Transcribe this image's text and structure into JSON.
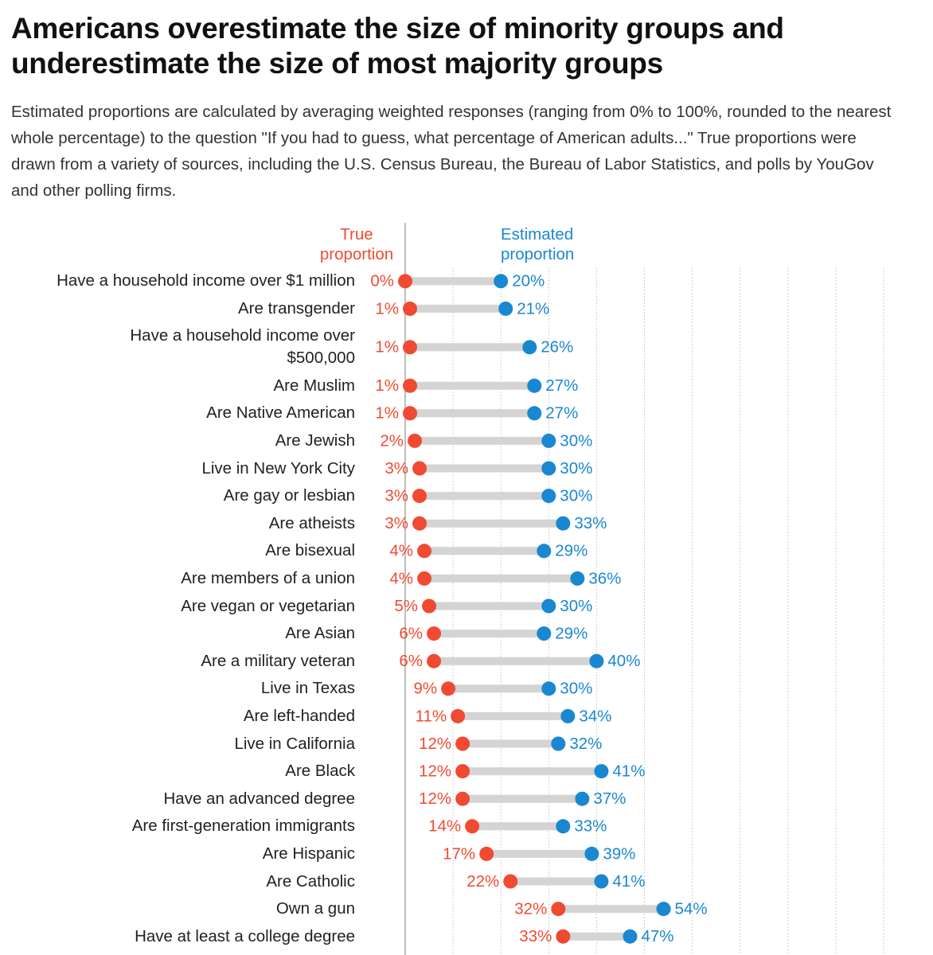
{
  "chart_data": {
    "type": "dumbbell",
    "title": "Americans overestimate the size of minority groups and underestimate the size of most majority groups",
    "subtitle": "Estimated proportions are calculated by averaging weighted responses (ranging from 0% to 100%, rounded to the nearest whole percentage) to the question \"If you had to guess, what percentage of American adults...\" True proportions were drawn from a variety of sources, including the U.S. Census Bureau, the Bureau of Labor Statistics, and polls by YouGov and other polling firms.",
    "categories": [
      "Have a household income over $1 million",
      "Are transgender",
      "Have a household income over\n$500,000",
      "Are Muslim",
      "Are Native American",
      "Are Jewish",
      "Live in New York City",
      "Are gay or lesbian",
      "Are atheists",
      "Are bisexual",
      "Are members of a union",
      "Are vegan or vegetarian",
      "Are Asian",
      "Are a military veteran",
      "Live in Texas",
      "Are left-handed",
      "Live in California",
      "Are Black",
      "Have an advanced degree",
      "Are first-generation immigrants",
      "Are Hispanic",
      "Are Catholic",
      "Own a gun",
      "Have at least a college degree"
    ],
    "series": [
      {
        "name": "True proportion",
        "color": "#f04a32",
        "values": [
          0,
          1,
          1,
          1,
          1,
          2,
          3,
          3,
          3,
          4,
          4,
          5,
          6,
          6,
          9,
          11,
          12,
          12,
          12,
          14,
          17,
          22,
          32,
          33
        ],
        "value_labels": [
          "0%",
          "1%",
          "1%",
          "1%",
          "1%",
          "2%",
          "3%",
          "3%",
          "3%",
          "4%",
          "4%",
          "5%",
          "6%",
          "6%",
          "9%",
          "11%",
          "12%",
          "12%",
          "12%",
          "14%",
          "17%",
          "22%",
          "32%",
          "33%"
        ]
      },
      {
        "name": "Estimated proportion",
        "color": "#1a87d1",
        "values": [
          20,
          21,
          26,
          27,
          27,
          30,
          30,
          30,
          33,
          29,
          36,
          30,
          29,
          40,
          30,
          34,
          32,
          41,
          37,
          33,
          39,
          41,
          54,
          47
        ],
        "value_labels": [
          "20%",
          "21%",
          "26%",
          "27%",
          "27%",
          "30%",
          "30%",
          "30%",
          "33%",
          "29%",
          "36%",
          "30%",
          "29%",
          "40%",
          "30%",
          "34%",
          "32%",
          "41%",
          "37%",
          "33%",
          "39%",
          "41%",
          "54%",
          "47%"
        ]
      }
    ],
    "xlim": [
      0,
      100
    ],
    "xticks": [
      0,
      10,
      20,
      30,
      40,
      50,
      60,
      70,
      80,
      90,
      100
    ],
    "grid": true,
    "bar_color": "#d4d4d4"
  }
}
